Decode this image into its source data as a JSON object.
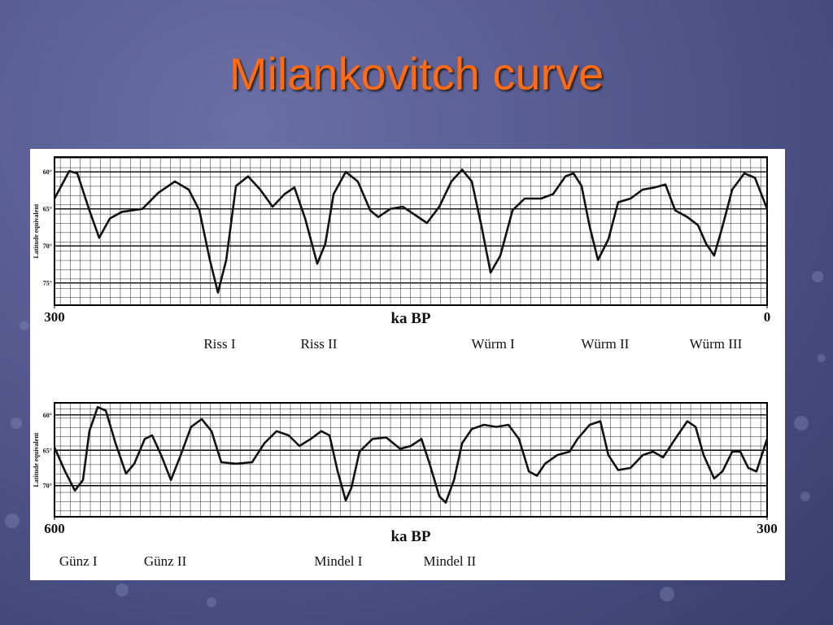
{
  "title": "Milankovitch curve",
  "chart_data": [
    {
      "type": "line",
      "x": [
        300,
        293.8,
        290.4,
        285.3,
        281.2,
        276.7,
        271.6,
        263,
        256.2,
        249.3,
        243.5,
        239,
        234.6,
        231.2,
        227.7,
        223.6,
        218.5,
        213.4,
        208.2,
        203.1,
        199,
        194.5,
        189.4,
        186,
        182.5,
        177.4,
        172.3,
        167.1,
        163.7,
        158.6,
        153.4,
        148.3,
        143.2,
        138,
        132.9,
        128.4,
        124.3,
        120.2,
        116.4,
        112.3,
        107.2,
        102.1,
        95.2,
        90.1,
        84.9,
        81.5,
        78.1,
        74.7,
        71.2,
        66.8,
        62.7,
        57.5,
        52.4,
        47.3,
        42.8,
        38.7,
        33.6,
        29.1,
        25.7,
        22.3,
        18.8,
        14.7,
        9.6,
        5.1,
        0
      ],
      "values": [
        63.6,
        59.9,
        60.2,
        65.2,
        68.9,
        66.3,
        65.4,
        65,
        62.8,
        61.3,
        62.4,
        65.2,
        71.9,
        76.3,
        71.9,
        61.9,
        60.6,
        62.4,
        64.7,
        63,
        62.1,
        66.3,
        72.4,
        69.7,
        63,
        60,
        61.3,
        65.2,
        66.1,
        65,
        64.7,
        65.8,
        66.9,
        64.7,
        61.3,
        59.7,
        61.3,
        67.4,
        73.6,
        71.3,
        65.2,
        63.6,
        63.6,
        63,
        60.6,
        60.2,
        61.9,
        67.4,
        71.9,
        69.1,
        64.1,
        63.6,
        62.4,
        62.1,
        61.7,
        65.2,
        66.1,
        67.2,
        69.7,
        71.3,
        67.4,
        62.4,
        60.2,
        60.8,
        65
      ],
      "color": "#111111",
      "xlim": [
        300,
        0
      ],
      "xticks": [
        300,
        0
      ],
      "xlabel": "ka BP",
      "ylim": [
        78,
        58
      ],
      "yticks": [
        {
          "value": 60,
          "label": "60°"
        },
        {
          "value": 65,
          "label": "65°"
        },
        {
          "value": 70,
          "label": "70°"
        },
        {
          "value": 75,
          "label": "75°"
        }
      ],
      "ylabel": "Latitude equivalent",
      "grid": true,
      "annotations": [
        {
          "text": "Riss I",
          "x": 230.5
        },
        {
          "text": "Riss II",
          "x": 188.7
        },
        {
          "text": "Würm I",
          "x": 115.4
        },
        {
          "text": "Würm II",
          "x": 68.2
        },
        {
          "text": "Würm III",
          "x": 21.6
        }
      ]
    },
    {
      "type": "line",
      "x": [
        600,
        595.5,
        591.4,
        588,
        585.3,
        581.8,
        578.4,
        574.3,
        569.9,
        566.4,
        562,
        558.9,
        555.1,
        551,
        546.9,
        542.5,
        538,
        533.9,
        529.8,
        523.6,
        516.8,
        511.6,
        506.5,
        501.4,
        496.9,
        492.1,
        487.7,
        484.2,
        480.8,
        477.4,
        475,
        471.6,
        466.1,
        460.3,
        454.5,
        450,
        445.5,
        442.1,
        438,
        435.3,
        431.8,
        428.4,
        424.3,
        419.2,
        414,
        408.9,
        404.5,
        400.3,
        396.9,
        393.5,
        388.4,
        383.2,
        379.8,
        374.7,
        370.2,
        366.8,
        362.7,
        357.5,
        352.4,
        348,
        343.8,
        338.7,
        333.6,
        330.1,
        326.7,
        322.3,
        318.8,
        314.7,
        311.3,
        307.9,
        304.5,
        300
      ],
      "values": [
        64.6,
        68,
        70.7,
        69.2,
        62.3,
        58.9,
        59.4,
        64,
        68.3,
        66.9,
        63.4,
        62.9,
        65.7,
        69.2,
        65.7,
        61.7,
        60.6,
        62.3,
        66.7,
        66.9,
        66.7,
        64,
        62.3,
        62.9,
        64.4,
        63.4,
        62.3,
        62.9,
        68,
        72.1,
        70.3,
        65.2,
        63.4,
        63.2,
        64.8,
        64.4,
        63.4,
        66.9,
        71.5,
        72.4,
        69.2,
        64,
        62,
        61.4,
        61.7,
        61.4,
        63.4,
        68,
        68.6,
        66.9,
        65.7,
        65.2,
        63.4,
        61.4,
        60.9,
        65.7,
        67.8,
        67.5,
        65.7,
        65.2,
        66,
        63.4,
        60.9,
        61.7,
        65.7,
        69,
        68,
        65.2,
        65.2,
        67.5,
        68,
        63.4
      ],
      "color": "#111111",
      "xlim": [
        600,
        300
      ],
      "xticks": [
        600,
        300
      ],
      "xlabel": "ka BP",
      "ylim": [
        74.4,
        58.3
      ],
      "yticks": [
        {
          "value": 60,
          "label": "60°"
        },
        {
          "value": 65,
          "label": "65°"
        },
        {
          "value": 70,
          "label": "70°"
        }
      ],
      "ylabel": "Latitude equivalent",
      "grid": true,
      "annotations": [
        {
          "text": "Günz I",
          "x": 590
        },
        {
          "text": "Günz II",
          "x": 553.4
        },
        {
          "text": "Mindel I",
          "x": 480.5
        },
        {
          "text": "Mindel II",
          "x": 433.6
        }
      ]
    }
  ]
}
